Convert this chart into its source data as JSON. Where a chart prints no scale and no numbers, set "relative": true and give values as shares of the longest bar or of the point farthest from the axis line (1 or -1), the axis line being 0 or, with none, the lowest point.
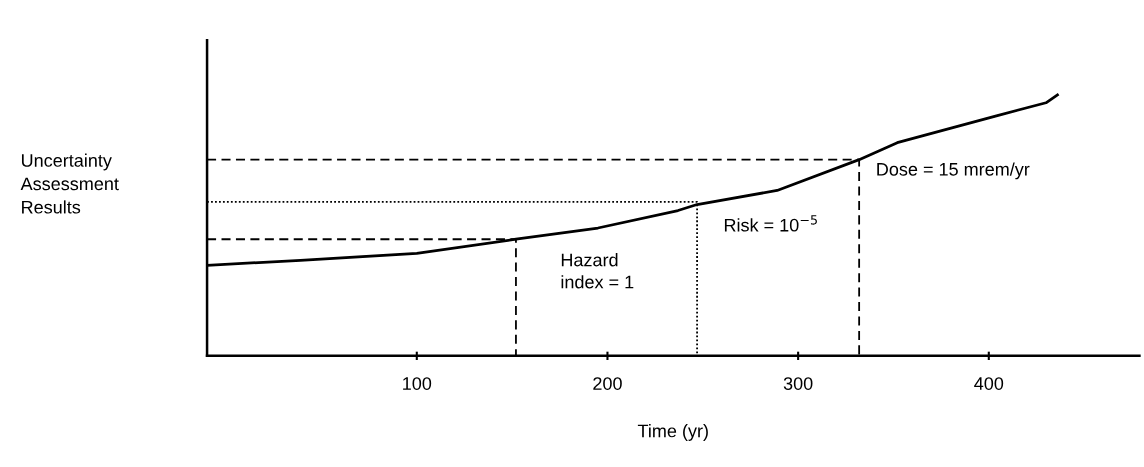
{
  "chart_data": {
    "type": "line",
    "relative": true,
    "xlabel": "Time (yr)",
    "ylabel": "Uncertainty\nAssessment\nResults",
    "xlim": [
      -10,
      479
    ],
    "xticks": [
      100,
      200,
      300,
      400
    ],
    "grid": false,
    "legend": false,
    "marker": "none",
    "series": [
      {
        "color": "#000000",
        "line_style": "solid",
        "x": [
          -10,
          39,
          100,
          152,
          195,
          237,
          247,
          289,
          332,
          352,
          404,
          430,
          436
        ],
        "values": [
          0.347,
          0.366,
          0.393,
          0.447,
          0.49,
          0.557,
          0.58,
          0.634,
          0.752,
          0.817,
          0.92,
          0.97,
          1.0
        ]
      },
      {
        "color": "#000000",
        "line_style": "dashed",
        "x": [
          -10,
          152,
          152
        ],
        "values": [
          0.447,
          0.447,
          0
        ]
      },
      {
        "color": "#000000",
        "line_style": "dotted",
        "x": [
          -10,
          247,
          247
        ],
        "values": [
          0.59,
          0.59,
          0
        ]
      },
      {
        "color": "#000000",
        "line_style": "dashed",
        "x": [
          -10,
          332,
          332
        ],
        "values": [
          0.752,
          0.752,
          0
        ]
      }
    ],
    "annotations": [
      {
        "text": "Hazard\nindex = 1",
        "x": 152,
        "y": 0.447
      },
      {
        "text": "Risk = 10$^{−5}$",
        "x": 247,
        "y": 0.58
      },
      {
        "text": "Dose = 15 mrem/yr",
        "x": 332,
        "y": 0.752
      }
    ]
  }
}
